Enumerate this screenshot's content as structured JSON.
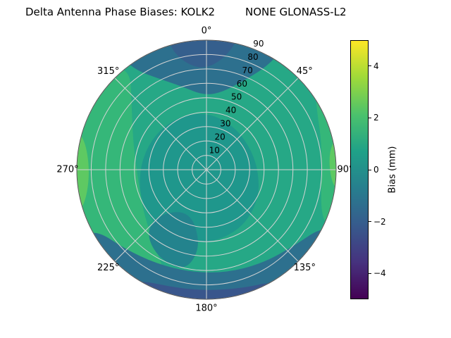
{
  "chart_data": {
    "type": "polar_contour",
    "title": "Delta Antenna Phase Biases: KOLK2         NONE GLONASS-L2",
    "angle_convention": "0° at top, increasing clockwise (azimuth)",
    "angular_ticks": [
      "0°",
      "45°",
      "90°",
      "135°",
      "180°",
      "225°",
      "270°",
      "315°"
    ],
    "radial_ticks": [
      "10",
      "20",
      "30",
      "40",
      "50",
      "60",
      "70",
      "80",
      "90"
    ],
    "radial_range": [
      0,
      90
    ],
    "rlabel_angle_deg": 22.5,
    "grid": true,
    "colorbar": {
      "label": "Bias (mm)",
      "colormap": "viridis",
      "vmin": -5,
      "vmax": 5,
      "tick_values": [
        4,
        2,
        0,
        -2,
        -4
      ],
      "ticks": [
        "4",
        "2",
        "0",
        "−2",
        "−4"
      ],
      "stops": [
        [
          0,
          "#440154"
        ],
        [
          0.14,
          "#46327e"
        ],
        [
          0.29,
          "#365c8d"
        ],
        [
          0.43,
          "#277f8e"
        ],
        [
          0.57,
          "#1fa188"
        ],
        [
          0.71,
          "#4ac16d"
        ],
        [
          0.86,
          "#a0da39"
        ],
        [
          1,
          "#fde725"
        ]
      ]
    },
    "base": {
      "bias_mm": 0.5,
      "color": "#26a886"
    },
    "regions": [
      {
        "name": "left-mid-green",
        "bias_mm": 1.5,
        "color": "#35b779",
        "points": [
          [
            198,
            96
          ],
          [
            215,
            96
          ],
          [
            232,
            96
          ],
          [
            250,
            96
          ],
          [
            268,
            96
          ],
          [
            285,
            96
          ],
          [
            302,
            96
          ],
          [
            318,
            96
          ],
          [
            322,
            86
          ],
          [
            312,
            70
          ],
          [
            296,
            57
          ],
          [
            278,
            50
          ],
          [
            258,
            48
          ],
          [
            238,
            52
          ],
          [
            220,
            60
          ],
          [
            206,
            72
          ],
          [
            198,
            84
          ]
        ]
      },
      {
        "name": "right-outer-green",
        "bias_mm": 1.5,
        "color": "#35b779",
        "points": [
          [
            52,
            96
          ],
          [
            68,
            96
          ],
          [
            84,
            96
          ],
          [
            100,
            96
          ],
          [
            116,
            96
          ],
          [
            112,
            86
          ],
          [
            96,
            80
          ],
          [
            78,
            82
          ],
          [
            60,
            88
          ]
        ]
      },
      {
        "name": "center-dark",
        "bias_mm": 0,
        "color": "#1f978c",
        "points": [
          [
            0,
            40
          ],
          [
            30,
            36
          ],
          [
            60,
            34
          ],
          [
            90,
            36
          ],
          [
            120,
            42
          ],
          [
            150,
            48
          ],
          [
            180,
            52
          ],
          [
            210,
            54
          ],
          [
            240,
            52
          ],
          [
            270,
            47
          ],
          [
            300,
            44
          ],
          [
            330,
            42
          ]
        ]
      },
      {
        "name": "lower-left-dark",
        "bias_mm": -0.5,
        "color": "#23838d",
        "points": [
          [
            192,
            72
          ],
          [
            208,
            70
          ],
          [
            222,
            62
          ],
          [
            227,
            50
          ],
          [
            220,
            38
          ],
          [
            205,
            33
          ],
          [
            191,
            39
          ],
          [
            185,
            56
          ]
        ]
      },
      {
        "name": "top-dark",
        "bias_mm": -1.5,
        "color": "#2d708e",
        "points": [
          [
            323,
            96
          ],
          [
            338,
            96
          ],
          [
            352,
            96
          ],
          [
            6,
            96
          ],
          [
            20,
            96
          ],
          [
            32,
            96
          ],
          [
            30,
            82
          ],
          [
            22,
            66
          ],
          [
            10,
            54
          ],
          [
            357,
            52
          ],
          [
            344,
            60
          ],
          [
            332,
            72
          ],
          [
            325,
            84
          ]
        ]
      },
      {
        "name": "top-dark-core",
        "bias_mm": -2,
        "color": "#355f8d",
        "points": [
          [
            344,
            96
          ],
          [
            356,
            96
          ],
          [
            8,
            96
          ],
          [
            14,
            96
          ],
          [
            10,
            80
          ],
          [
            0,
            70
          ],
          [
            350,
            74
          ],
          [
            344,
            86
          ]
        ]
      },
      {
        "name": "bottom-dark-band",
        "bias_mm": -1.5,
        "color": "#2d708e",
        "points": [
          [
            116,
            96
          ],
          [
            132,
            96
          ],
          [
            150,
            96
          ],
          [
            168,
            96
          ],
          [
            186,
            96
          ],
          [
            204,
            96
          ],
          [
            222,
            96
          ],
          [
            242,
            96
          ],
          [
            240,
            86
          ],
          [
            226,
            79
          ],
          [
            208,
            74
          ],
          [
            188,
            72
          ],
          [
            168,
            73
          ],
          [
            148,
            76
          ],
          [
            130,
            81
          ],
          [
            118,
            88
          ]
        ]
      },
      {
        "name": "bottom-dark-core",
        "bias_mm": -2.5,
        "color": "#39568c",
        "points": [
          [
            148,
            96
          ],
          [
            165,
            96
          ],
          [
            182,
            96
          ],
          [
            200,
            96
          ],
          [
            214,
            96
          ],
          [
            210,
            89
          ],
          [
            196,
            85
          ],
          [
            180,
            84
          ],
          [
            163,
            86
          ],
          [
            150,
            90
          ]
        ]
      },
      {
        "name": "left-edge-bright",
        "bias_mm": 2.5,
        "color": "#5ec962",
        "points": [
          [
            250,
            96
          ],
          [
            262,
            96
          ],
          [
            274,
            96
          ],
          [
            287,
            96
          ],
          [
            284,
            87
          ],
          [
            270,
            81
          ],
          [
            256,
            86
          ]
        ]
      },
      {
        "name": "right-edge-bright",
        "bias_mm": 2.5,
        "color": "#5ec962",
        "points": [
          [
            76,
            96
          ],
          [
            88,
            96
          ],
          [
            100,
            96
          ],
          [
            97,
            88
          ],
          [
            86,
            85
          ],
          [
            78,
            89
          ]
        ]
      },
      {
        "name": "right-edge-yellow",
        "bias_mm": 4,
        "color": "#b5de2b",
        "points": [
          [
            83,
            96
          ],
          [
            90,
            96
          ],
          [
            96,
            96
          ],
          [
            93,
            91
          ],
          [
            86,
            91
          ]
        ]
      }
    ]
  }
}
